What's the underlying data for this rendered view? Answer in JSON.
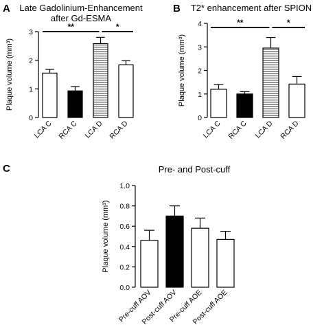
{
  "chart_data": [
    {
      "type": "bar",
      "panel": "A",
      "title": [
        "Late Gadolinium-Enhancement",
        "after Gd-ESMA"
      ],
      "ylabel": "Plaque volume (mm³)",
      "ylim": [
        0,
        3
      ],
      "yticks": [
        "0",
        "1",
        "2",
        "3"
      ],
      "categories": [
        "LCA C",
        "RCA C",
        "LCA D",
        "RCA D"
      ],
      "values": [
        1.55,
        0.93,
        2.58,
        1.84
      ],
      "errors": [
        0.13,
        0.15,
        0.22,
        0.14
      ],
      "fills": [
        "white",
        "black",
        "hatched",
        "white"
      ],
      "significance": [
        {
          "from": 0,
          "to": 2,
          "label": "**"
        },
        {
          "from": 2,
          "to": 3,
          "label": "*"
        }
      ]
    },
    {
      "type": "bar",
      "panel": "B",
      "title": [
        "T2* enhancement after SPION"
      ],
      "ylabel": "Plaque volume (mm³)",
      "ylim": [
        0,
        4
      ],
      "yticks": [
        "0",
        "1",
        "2",
        "3",
        "4"
      ],
      "categories": [
        "LCA C",
        "RCA C",
        "LCA D",
        "RCA D"
      ],
      "values": [
        1.2,
        1.0,
        2.95,
        1.42
      ],
      "errors": [
        0.2,
        0.1,
        0.45,
        0.32
      ],
      "fills": [
        "white",
        "black",
        "hatched",
        "white"
      ],
      "significance": [
        {
          "from": 0,
          "to": 2,
          "label": "**"
        },
        {
          "from": 2,
          "to": 3,
          "label": "*"
        }
      ]
    },
    {
      "type": "bar",
      "panel": "C",
      "title": [
        "Pre- and Post-cuff"
      ],
      "ylabel": "Plaque volume (mm³)",
      "ylim": [
        0,
        1.0
      ],
      "yticks": [
        "0.0",
        "0.2",
        "0.4",
        "0.6",
        "0.8",
        "1.0"
      ],
      "categories": [
        "Pre-cuff AOV",
        "Post-cuff AOV",
        "Pre-cuff AOE",
        "Post-cuff AOE"
      ],
      "values": [
        0.46,
        0.7,
        0.58,
        0.47
      ],
      "errors": [
        0.1,
        0.1,
        0.1,
        0.08
      ],
      "fills": [
        "white",
        "black",
        "white",
        "white"
      ],
      "significance": []
    }
  ]
}
